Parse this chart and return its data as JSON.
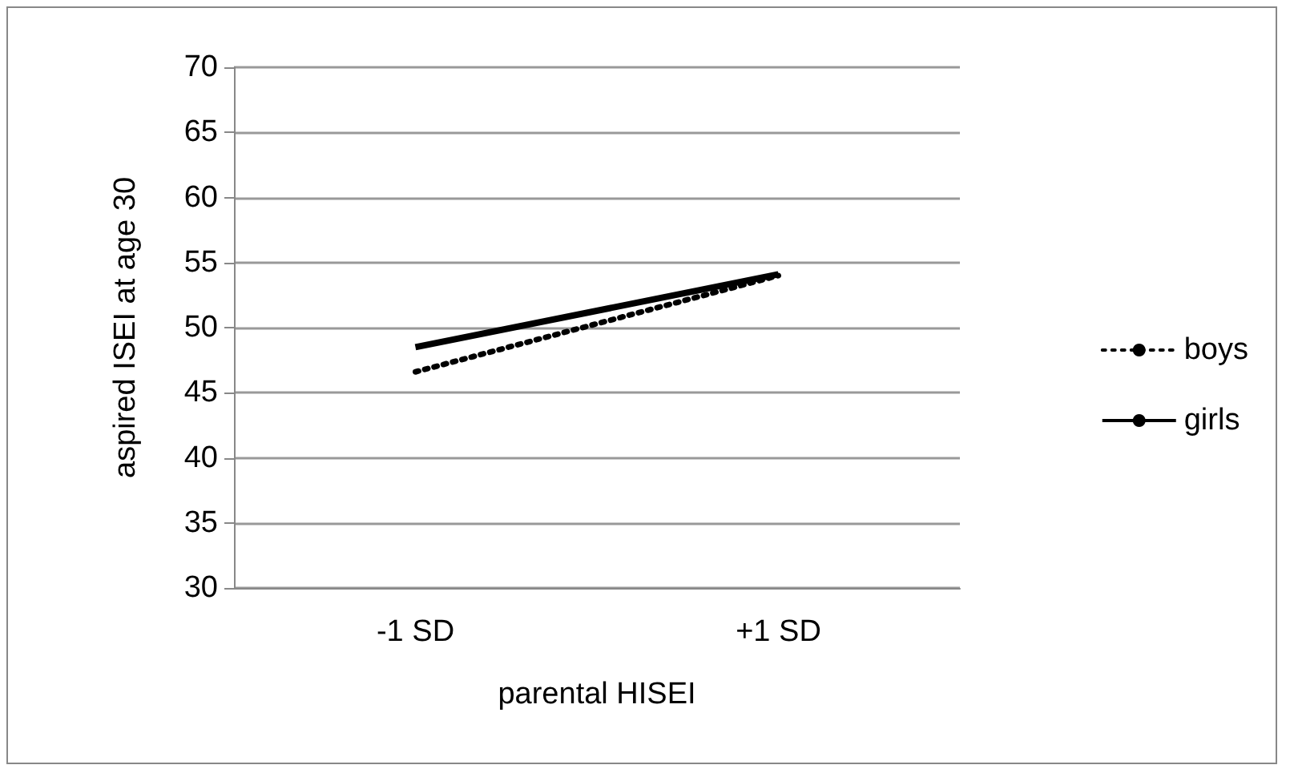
{
  "chart_data": {
    "type": "line",
    "xlabel": "parental HISEI",
    "ylabel": "aspired ISEI at age 30",
    "categories": [
      "-1 SD",
      "+1 SD"
    ],
    "series": [
      {
        "name": "boys",
        "color": "#000000",
        "values": [
          46.6,
          54.0
        ],
        "line_style": "dotted"
      },
      {
        "name": "girls",
        "color": "#000000",
        "values": [
          48.5,
          54.1
        ],
        "line_style": "solid"
      }
    ],
    "ylim": [
      30,
      70
    ],
    "yticks": [
      30,
      35,
      40,
      45,
      50,
      55,
      60,
      65,
      70
    ],
    "grid": "y",
    "legend": "right",
    "marker": "none"
  }
}
